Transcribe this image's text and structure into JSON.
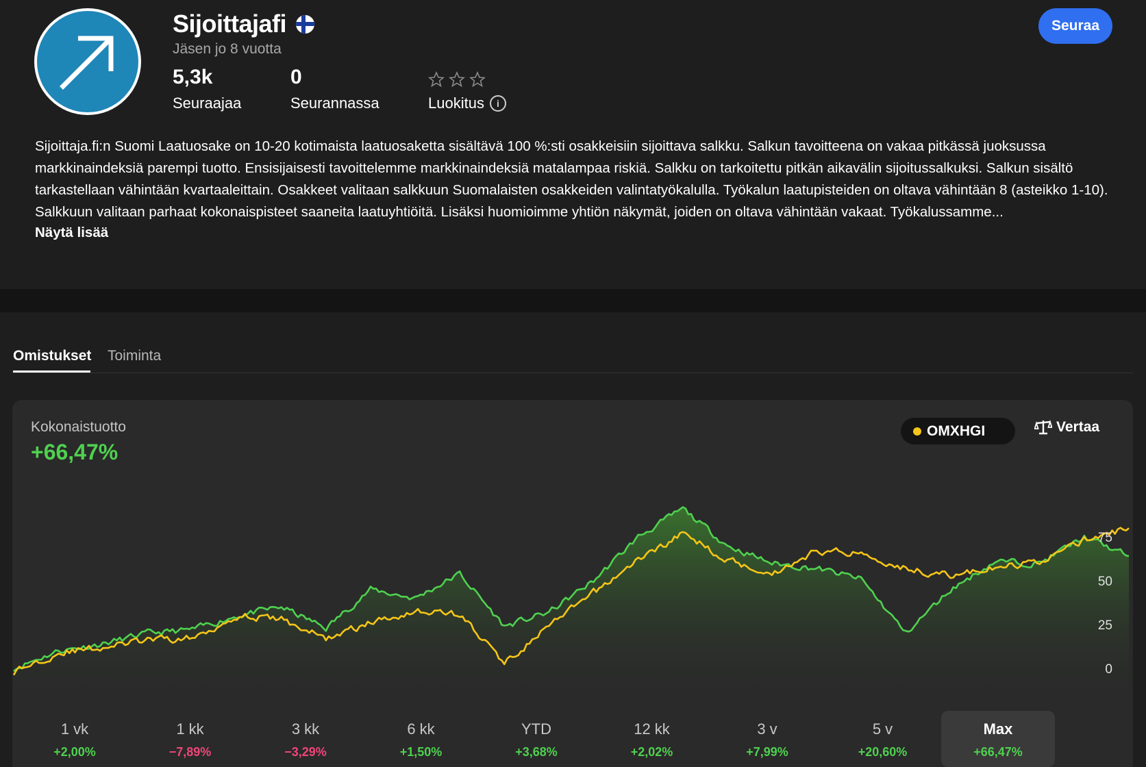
{
  "profile": {
    "name": "Sijoittajafi",
    "member_since": "Jäsen jo 8 vuotta",
    "follow_label": "Seuraa",
    "stats": [
      {
        "value": "5,3k",
        "label": "Seuraajaa"
      },
      {
        "value": "0",
        "label": "Seurannassa"
      }
    ],
    "rating": {
      "label": "Luokitus",
      "stars": 0,
      "max_stars": 3
    },
    "description": "Sijoittaja.fi:n Suomi Laatuosake on 10-20 kotimaista laatuosaketta sisältävä 100 %:sti osakkeisiin sijoittava salkku. Salkun tavoitteena on vakaa pitkässä juoksussa markkinaindeksiä parempi tuotto. Ensisijaisesti tavoittelemme markkinaindeksiä matalampaa riskiä. Salkku on tarkoitettu pitkän aikavälin sijoitussalkuksi. Salkun sisältö tarkastellaan vähintään kvartaaleittain. Osakkeet valitaan salkkuun Suomalaisten osakkeiden valintatyökalulla. Työkalun laatupisteiden on oltava vähintään 8 (asteikko 1-10). Salkkuun valitaan parhaat kokonaispisteet saaneita laatuyhtiöitä. Lisäksi huomioimme yhtiön näkymät, joiden on oltava vähintään vakaat. Työkalussamme...",
    "show_more": "Näytä lisää"
  },
  "tabs": [
    {
      "label": "Omistukset",
      "active": true
    },
    {
      "label": "Toiminta",
      "active": false
    }
  ],
  "performance": {
    "title": "Kokonaistuotto",
    "value": "+66,47%",
    "benchmark": "OMXHGI",
    "compare_label": "Vertaa",
    "periods": [
      {
        "label": "1 vk",
        "value": "+2,00%",
        "positive": true
      },
      {
        "label": "1 kk",
        "value": "−7,89%",
        "positive": false
      },
      {
        "label": "3 kk",
        "value": "−3,29%",
        "positive": false
      },
      {
        "label": "6 kk",
        "value": "+1,50%",
        "positive": true
      },
      {
        "label": "YTD",
        "value": "+3,68%",
        "positive": true
      },
      {
        "label": "12 kk",
        "value": "+2,02%",
        "positive": true
      },
      {
        "label": "3 v",
        "value": "+7,99%",
        "positive": true
      },
      {
        "label": "5 v",
        "value": "+20,60%",
        "positive": true
      },
      {
        "label": "Max",
        "value": "+66,47%",
        "positive": true,
        "active": true
      }
    ]
  },
  "colors": {
    "portfolio": "#4fd14f",
    "benchmark": "#f5c518",
    "positive": "#4fd14f",
    "negative": "#f0447a",
    "accent": "#2f6ff0"
  },
  "chart_data": {
    "type": "line",
    "x": [
      0,
      0.04,
      0.08,
      0.12,
      0.16,
      0.2,
      0.24,
      0.28,
      0.32,
      0.36,
      0.4,
      0.44,
      0.48,
      0.52,
      0.56,
      0.6,
      0.64,
      0.68,
      0.72,
      0.76,
      0.8,
      0.84,
      0.88,
      0.92,
      0.96,
      1.0
    ],
    "series": [
      {
        "color": "#4fd14f",
        "values": [
          0,
          10,
          14,
          20,
          22,
          30,
          35,
          23,
          45,
          40,
          54,
          24,
          32,
          50,
          75,
          91,
          70,
          60,
          57,
          51,
          20,
          45,
          61,
          60,
          75,
          64
        ]
      },
      {
        "color": "#f5c518",
        "values": [
          -2,
          9,
          12,
          16,
          17,
          30,
          28,
          17,
          26,
          33,
          31,
          3,
          24,
          43,
          62,
          77,
          62,
          54,
          67,
          66,
          57,
          53,
          57,
          61,
          73,
          80
        ]
      }
    ],
    "yticks": [
      0,
      25,
      50,
      75
    ],
    "ylim": [
      -5,
      100
    ],
    "grid": false
  }
}
